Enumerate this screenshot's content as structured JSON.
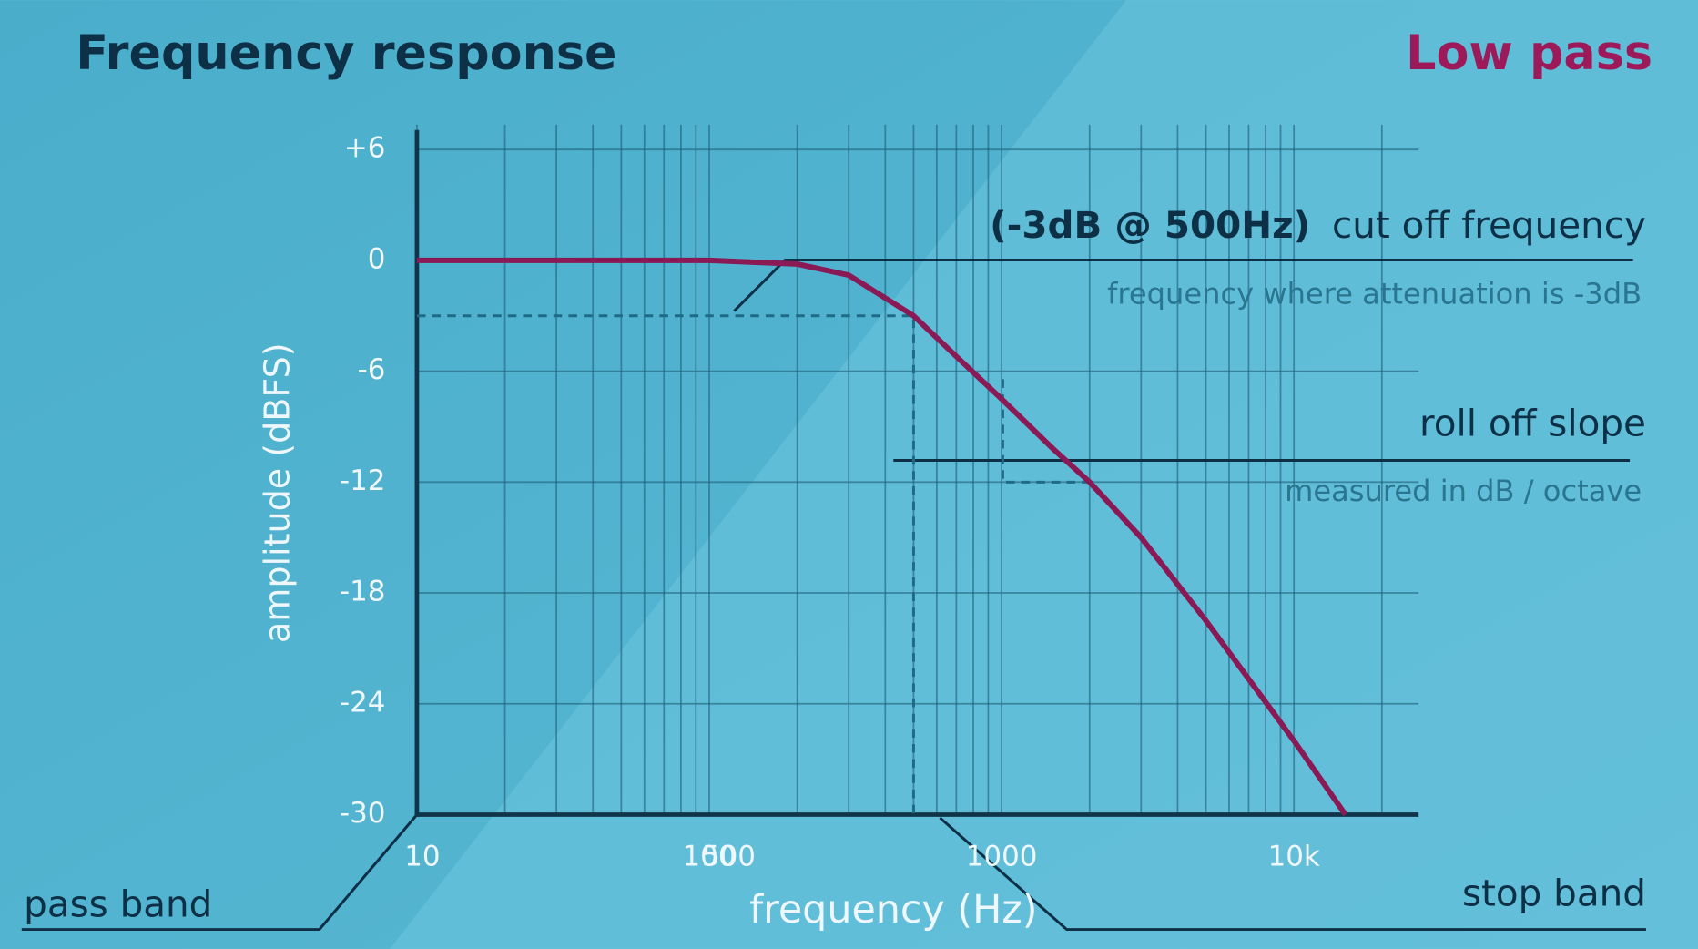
{
  "chart_data": {
    "type": "line",
    "title": "Frequency response",
    "subtitle": "Low pass",
    "x_label": "frequency (Hz)",
    "y_label": "amplitude (dBFS)",
    "x": [
      10,
      100,
      200,
      300,
      500,
      700,
      1000,
      1500,
      2000,
      3000,
      5000,
      10000,
      15000
    ],
    "series": [
      {
        "color": "#8a1a55",
        "values": [
          0,
          0,
          -0.2,
          -0.8,
          -3,
          -5.2,
          -7.5,
          -10.2,
          -12,
          -15,
          -19.5,
          -26,
          -30
        ]
      }
    ],
    "xscale": "log",
    "xlim": [
      10,
      26700
    ],
    "xticks": [
      10,
      100,
      1000,
      {
        "value": 10000,
        "label": "10k"
      }
    ],
    "xgrid": [
      20,
      30,
      40,
      50,
      60,
      70,
      80,
      90,
      200,
      300,
      400,
      500,
      600,
      700,
      800,
      900,
      2000,
      3000,
      4000,
      5000,
      6000,
      7000,
      8000,
      9000,
      20000
    ],
    "ylim": [
      -30,
      6
    ],
    "yticks": [
      {
        "value": 6,
        "label": "+6"
      },
      0,
      -6,
      -12,
      -18,
      -24,
      -30
    ],
    "grid": true,
    "cutoff": [
      500,
      -3
    ],
    "annotations": [
      "(-3dB @ 500Hz)",
      "cut off frequency",
      "frequency where attenuation is -3dB",
      "roll off slope",
      "measured in dB / octave",
      "pass band",
      "stop band",
      "500"
    ]
  }
}
